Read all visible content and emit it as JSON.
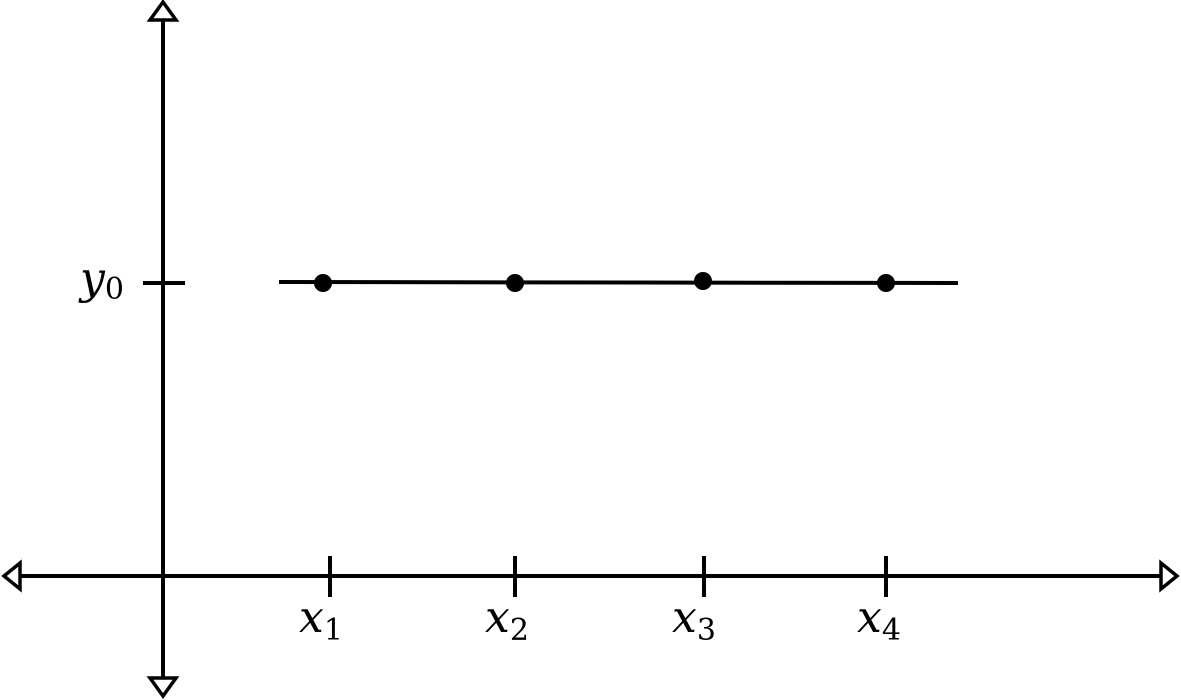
{
  "diagram": {
    "y_axis_label": {
      "base": "y",
      "sub": "0"
    },
    "x_ticks": [
      {
        "base": "x",
        "sub": "1"
      },
      {
        "base": "x",
        "sub": "2"
      },
      {
        "base": "x",
        "sub": "3"
      },
      {
        "base": "x",
        "sub": "4"
      }
    ],
    "points_count": 4,
    "colors": {
      "ink": "#000000",
      "background": "#ffffff"
    }
  }
}
